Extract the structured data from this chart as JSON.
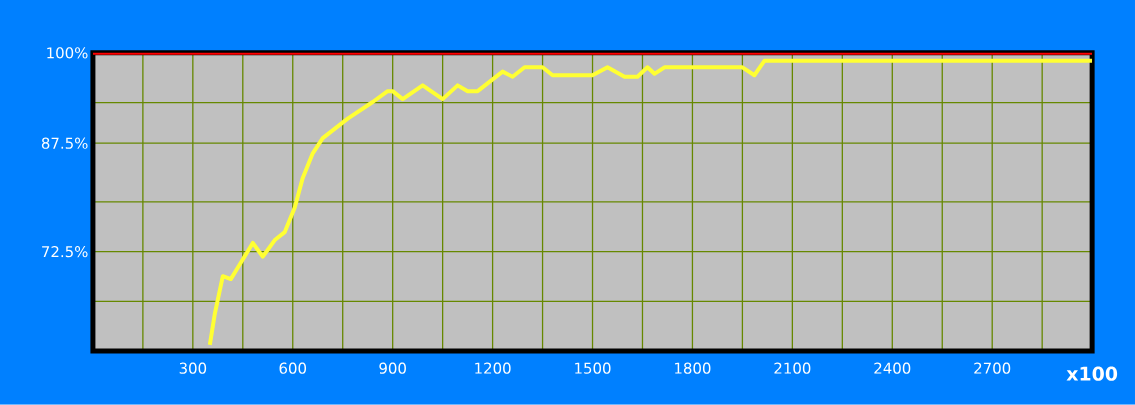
{
  "chart_data": {
    "type": "line",
    "xlabel": "x100",
    "x": [
      351,
      366,
      390,
      414,
      438,
      480,
      510,
      546,
      576,
      606,
      630,
      660,
      690,
      765,
      840,
      885,
      900,
      930,
      990,
      1050,
      1095,
      1125,
      1155,
      1230,
      1260,
      1296,
      1350,
      1380,
      1500,
      1545,
      1596,
      1635,
      1665,
      1686,
      1716,
      1950,
      1986,
      2016,
      3000
    ],
    "series": [
      {
        "color": "#ffff33",
        "values": [
          59.6,
          63.9,
          69.1,
          68.7,
          70.5,
          73.7,
          71.8,
          74.1,
          75.2,
          78.6,
          82.7,
          86.1,
          88.2,
          90.9,
          93.2,
          94.7,
          94.7,
          93.6,
          95.5,
          93.6,
          95.5,
          94.7,
          94.7,
          97.4,
          96.7,
          98.0,
          98.0,
          96.9,
          96.9,
          98.0,
          96.7,
          96.7,
          98.0,
          97.1,
          98.0,
          98.0,
          96.9,
          98.9,
          98.9
        ]
      }
    ],
    "xlim": [
      0,
      3000
    ],
    "ylim": [
      58.75,
      100
    ],
    "xticks": [
      {
        "value": 150,
        "label": null
      },
      300,
      {
        "value": 450,
        "label": null
      },
      600,
      {
        "value": 750,
        "label": null
      },
      900,
      {
        "value": 1050,
        "label": null
      },
      1200,
      {
        "value": 1350,
        "label": null
      },
      1500,
      {
        "value": 1650,
        "label": null
      },
      1800,
      {
        "value": 1950,
        "label": null
      },
      2100,
      {
        "value": 2250,
        "label": null
      },
      2400,
      {
        "value": 2550,
        "label": null
      },
      2700,
      {
        "value": 2850,
        "label": null
      }
    ],
    "yticks": [
      {
        "value": 65.625,
        "label": null
      },
      {
        "value": 72.5,
        "label": "72.5%"
      },
      {
        "value": 79.375,
        "label": null
      },
      {
        "value": 87.5,
        "label": "87.5%"
      },
      {
        "value": 93.125,
        "label": null
      },
      {
        "value": 100,
        "label": "100%"
      }
    ],
    "ref_lines": [
      {
        "axis": "y",
        "value": 100,
        "color": "#ff0000"
      }
    ],
    "grid": true,
    "marker": "none",
    "line_style": "solid"
  }
}
